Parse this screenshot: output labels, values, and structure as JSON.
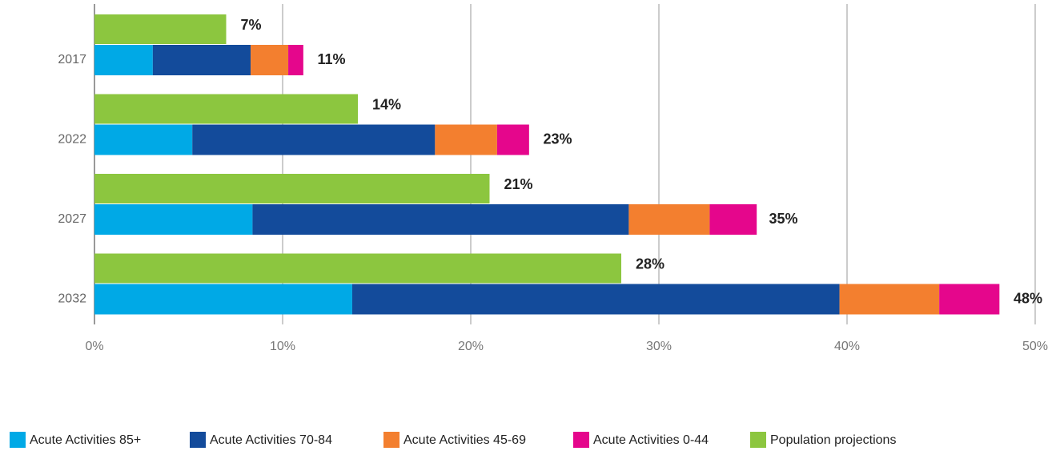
{
  "chart_data": {
    "type": "bar",
    "orientation": "horizontal",
    "categories": [
      "2017",
      "2022",
      "2027",
      "2032"
    ],
    "series": [
      {
        "name": "Acute Activities 85+",
        "color": "#00a9e6",
        "values": [
          3.1,
          5.2,
          8.4,
          13.7
        ]
      },
      {
        "name": "Acute Activities 70-84",
        "color": "#134b9b",
        "values": [
          5.2,
          12.9,
          20.0,
          25.9
        ]
      },
      {
        "name": "Acute Activities 45-69",
        "color": "#f37f2f",
        "values": [
          2.0,
          3.3,
          4.3,
          5.3
        ]
      },
      {
        "name": "Acute Activities 0-44",
        "color": "#e5068c",
        "values": [
          0.8,
          1.7,
          2.5,
          3.2
        ]
      }
    ],
    "totals": [
      11,
      23,
      35,
      48
    ],
    "total_labels": [
      "11%",
      "23%",
      "35%",
      "48%"
    ],
    "population": {
      "name": "Population projections",
      "color": "#8cc63f",
      "values": [
        7,
        14,
        21,
        28
      ],
      "value_labels": [
        "7%",
        "14%",
        "21%",
        "28%"
      ]
    },
    "xlim": [
      0,
      50
    ],
    "xticks": [
      {
        "value": 0,
        "label": "0%"
      },
      {
        "value": 10,
        "label": "10%"
      },
      {
        "value": 20,
        "label": "20%"
      },
      {
        "value": 30,
        "label": "30%"
      },
      {
        "value": 40,
        "label": "40%"
      },
      {
        "value": 50,
        "label": "50%"
      }
    ],
    "grid": true
  }
}
